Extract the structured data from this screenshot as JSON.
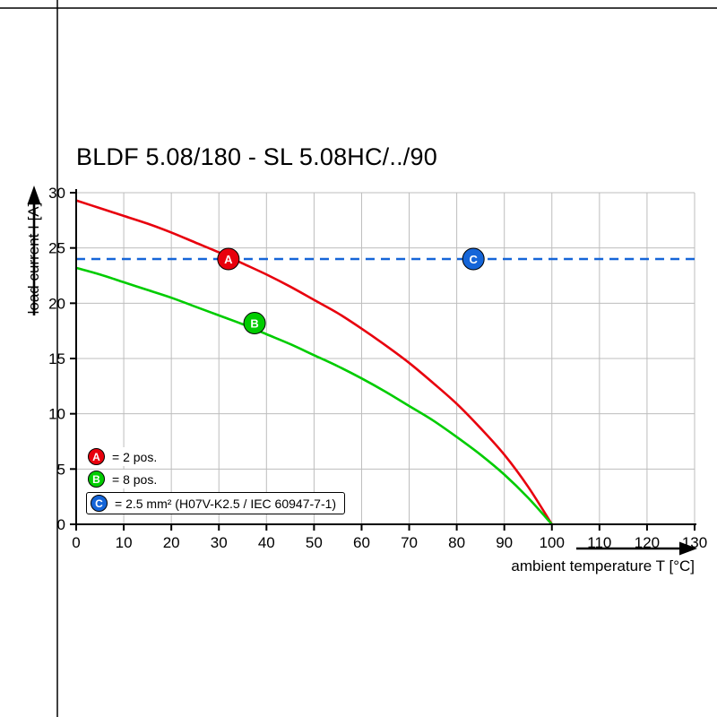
{
  "colors": {
    "red": "#e8000d",
    "green": "#00cc00",
    "blue": "#1565d8",
    "grid": "#bdbdbd",
    "axis": "#000000"
  },
  "legend": [
    {
      "letter": "A",
      "text": "= 2 pos.",
      "color_key": "red"
    },
    {
      "letter": "B",
      "text": "= 8 pos.",
      "color_key": "green"
    },
    {
      "letter": "C",
      "text": "= 2.5 mm² (H07V-K2.5 / IEC 60947-7-1)",
      "color_key": "blue"
    }
  ],
  "chart_data": {
    "type": "line",
    "title": "BLDF 5.08/180 - SL 5.08HC/../90",
    "xlabel": "ambient temperature T [°C]",
    "ylabel": "load current I [A]",
    "xlim": [
      0,
      130
    ],
    "ylim": [
      0,
      30
    ],
    "x_ticks": [
      0,
      10,
      20,
      30,
      40,
      50,
      60,
      70,
      80,
      90,
      100,
      110,
      120,
      130
    ],
    "y_ticks": [
      0,
      5,
      10,
      15,
      20,
      25,
      30
    ],
    "grid": true,
    "legend_position": "bottom-left",
    "series": [
      {
        "name": "A",
        "description": "2 pos.",
        "color_key": "red",
        "line_style": "solid",
        "points": [
          [
            0,
            29.3
          ],
          [
            5,
            28.6
          ],
          [
            10,
            27.9
          ],
          [
            15,
            27.2
          ],
          [
            20,
            26.4
          ],
          [
            25,
            25.5
          ],
          [
            30,
            24.6
          ],
          [
            35,
            23.6
          ],
          [
            40,
            22.6
          ],
          [
            45,
            21.5
          ],
          [
            50,
            20.3
          ],
          [
            55,
            19.1
          ],
          [
            60,
            17.7
          ],
          [
            65,
            16.2
          ],
          [
            70,
            14.6
          ],
          [
            75,
            12.8
          ],
          [
            80,
            10.9
          ],
          [
            85,
            8.7
          ],
          [
            90,
            6.3
          ],
          [
            95,
            3.4
          ],
          [
            100,
            0
          ]
        ]
      },
      {
        "name": "B",
        "description": "8 pos.",
        "color_key": "green",
        "line_style": "solid",
        "points": [
          [
            0,
            23.2
          ],
          [
            5,
            22.6
          ],
          [
            10,
            21.9
          ],
          [
            15,
            21.2
          ],
          [
            20,
            20.5
          ],
          [
            25,
            19.7
          ],
          [
            30,
            18.9
          ],
          [
            35,
            18.1
          ],
          [
            40,
            17.2
          ],
          [
            45,
            16.3
          ],
          [
            50,
            15.3
          ],
          [
            55,
            14.3
          ],
          [
            60,
            13.2
          ],
          [
            65,
            12.0
          ],
          [
            70,
            10.7
          ],
          [
            75,
            9.4
          ],
          [
            80,
            7.9
          ],
          [
            85,
            6.3
          ],
          [
            90,
            4.5
          ],
          [
            95,
            2.4
          ],
          [
            100,
            0
          ]
        ]
      },
      {
        "name": "C",
        "description": "2.5 mm² (H07V-K2.5 / IEC 60947-7-1)",
        "color_key": "blue",
        "line_style": "dashed",
        "points": [
          [
            0,
            24
          ],
          [
            130,
            24
          ]
        ]
      }
    ],
    "markers": [
      {
        "label": "A",
        "x": 32,
        "y": 24,
        "color_key": "red"
      },
      {
        "label": "B",
        "x": 37.5,
        "y": 18.2,
        "color_key": "green"
      },
      {
        "label": "C",
        "x": 83.5,
        "y": 24,
        "color_key": "blue"
      }
    ]
  }
}
